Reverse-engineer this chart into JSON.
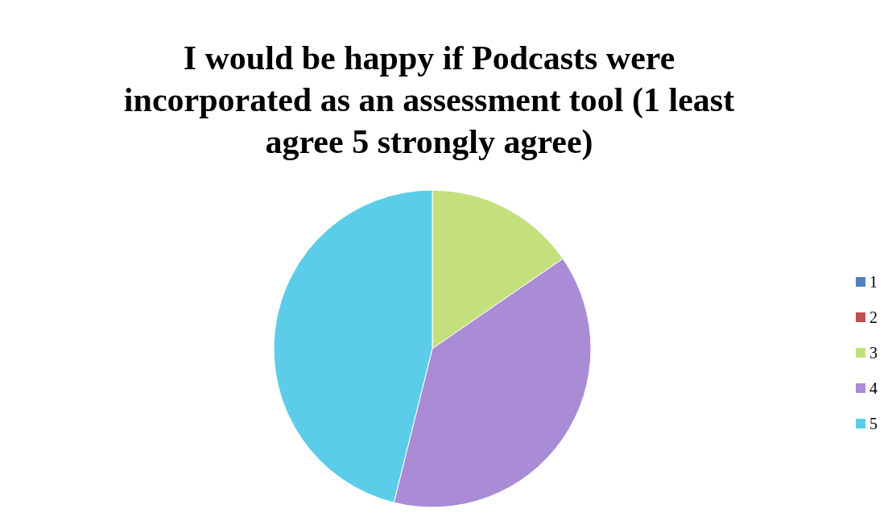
{
  "chart_data": {
    "type": "pie",
    "title": "I would be happy if Podcasts were incorporated as an assessment tool (1 least agree 5 strongly agree)",
    "categories": [
      "1",
      "2",
      "3",
      "4",
      "5"
    ],
    "values": [
      0,
      0,
      15.4,
      38.5,
      46.1
    ],
    "colors": [
      "#4f81bd",
      "#c0504d",
      "#c4e07c",
      "#a98bd6",
      "#5ccde8"
    ],
    "legend": "right"
  }
}
